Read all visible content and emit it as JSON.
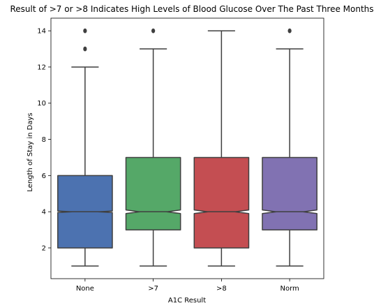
{
  "chart_data": {
    "type": "box",
    "title": "Result of >7 or >8 Indicates High Levels of Blood Glucose Over The Past Three Months",
    "xlabel": "A1C Result",
    "ylabel": "Length of Stay in Days",
    "categories": [
      "None",
      ">7",
      ">8",
      "Norm"
    ],
    "ylim": [
      0.3,
      14.7
    ],
    "yticks": [
      2,
      4,
      6,
      8,
      10,
      12,
      14
    ],
    "notched": true,
    "boxes": [
      {
        "category": "None",
        "whisker_low": 1,
        "q1": 2,
        "median": 4,
        "q3": 6,
        "whisker_high": 12,
        "notch_low": 3.96,
        "notch_high": 4.04,
        "outliers": [
          13,
          14
        ],
        "color": "#4c72b0"
      },
      {
        "category": ">7",
        "whisker_low": 1,
        "q1": 3,
        "median": 4,
        "q3": 7,
        "whisker_high": 13,
        "notch_low": 3.9,
        "notch_high": 4.1,
        "outliers": [
          14
        ],
        "color": "#55a868"
      },
      {
        "category": ">8",
        "whisker_low": 1,
        "q1": 2,
        "median": 4,
        "q3": 7,
        "whisker_high": 14,
        "notch_low": 3.9,
        "notch_high": 4.1,
        "outliers": [],
        "color": "#c44e52"
      },
      {
        "category": "Norm",
        "whisker_low": 1,
        "q1": 3,
        "median": 4,
        "q3": 7,
        "whisker_high": 13,
        "notch_low": 3.9,
        "notch_high": 4.1,
        "outliers": [
          14
        ],
        "color": "#8172b2"
      }
    ],
    "grid": false,
    "legend": "none"
  }
}
